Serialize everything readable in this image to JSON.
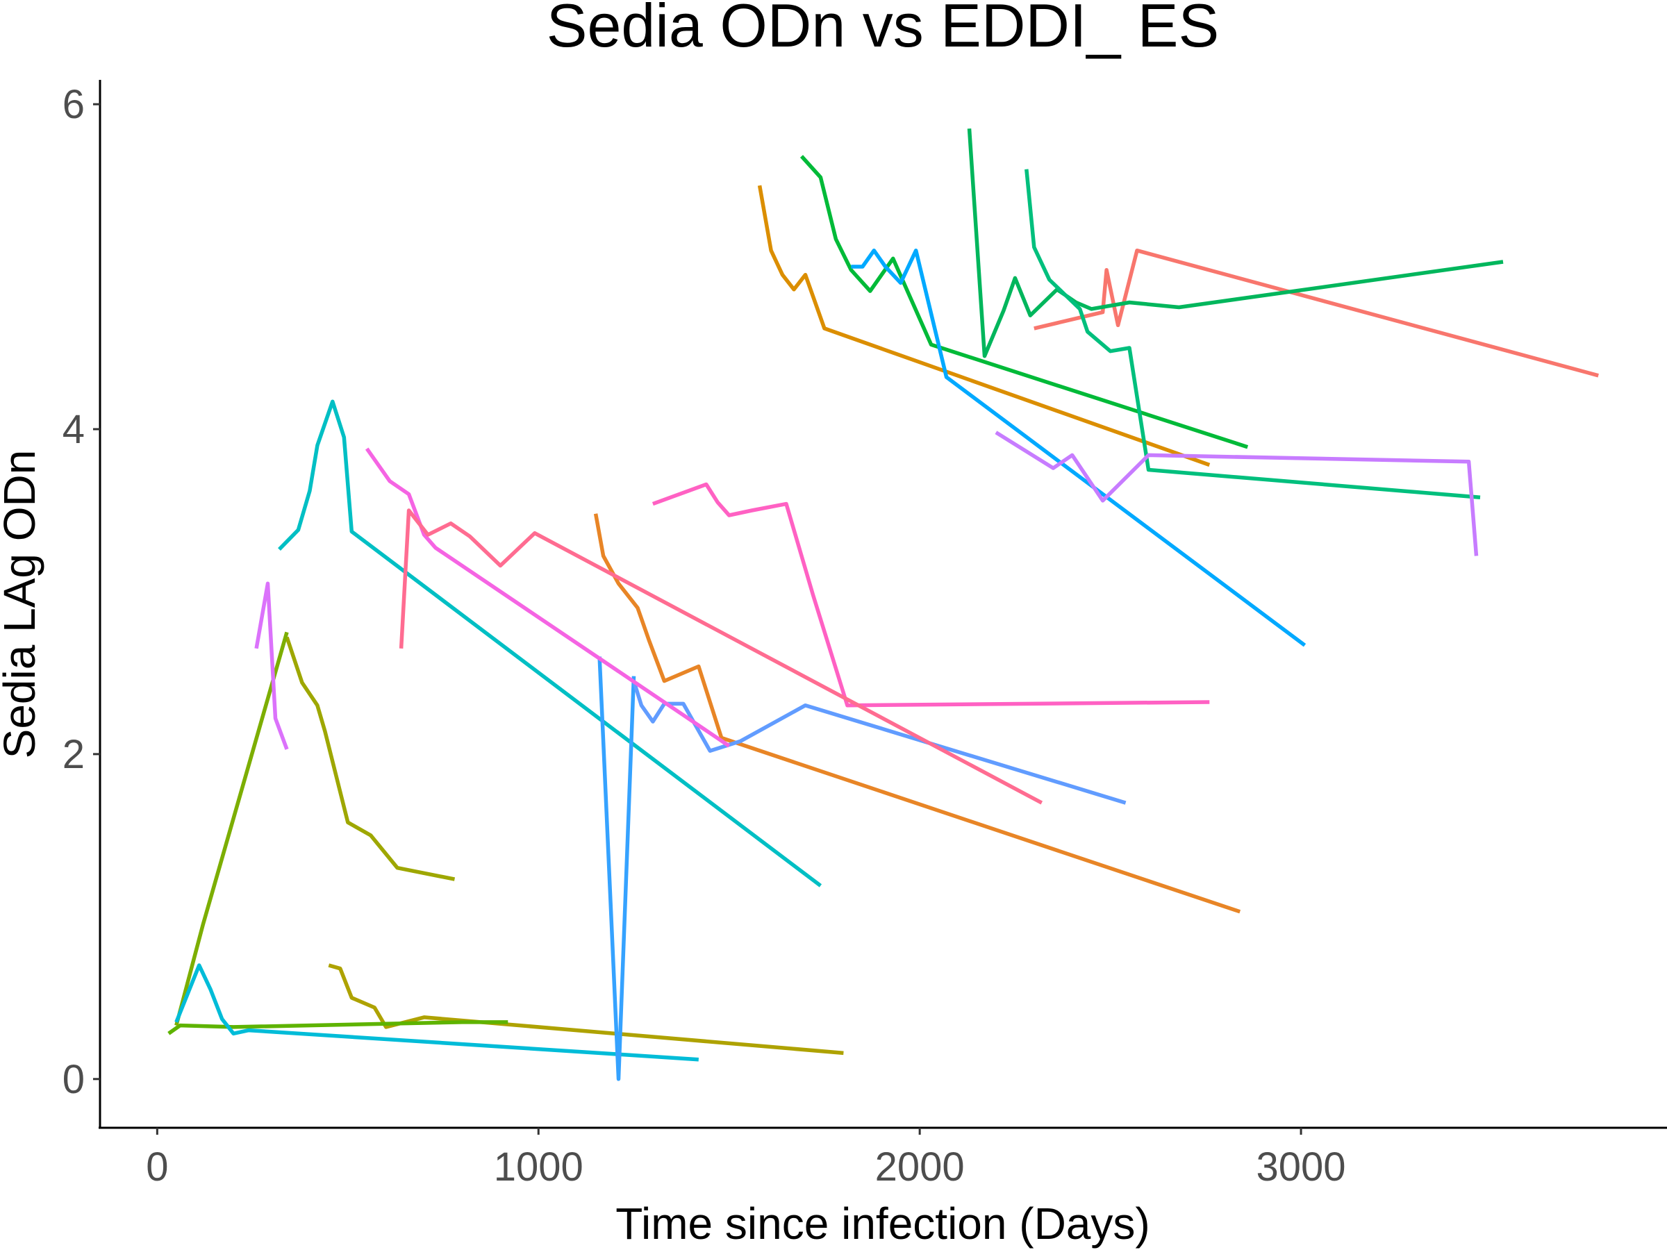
{
  "chart_data": {
    "type": "line",
    "title": "Sedia ODn vs EDDI_ ES",
    "xlabel": "Time since infection (Days)",
    "ylabel": "Sedia LAg ODn",
    "xlim": [
      -150,
      3960
    ],
    "ylim": [
      -0.3,
      6.15
    ],
    "x_ticks": [
      0,
      1000,
      2000,
      3000
    ],
    "x_tick_labels": [
      "0",
      "1000",
      "2000",
      "3000"
    ],
    "y_ticks": [
      0,
      2,
      4,
      6
    ],
    "y_tick_labels": [
      "0",
      "2",
      "4",
      "6"
    ],
    "grid": false,
    "legend": "none",
    "series": [
      {
        "color": "#F8766D",
        "points": [
          [
            2300,
            4.62
          ],
          [
            2480,
            4.72
          ],
          [
            2490,
            4.98
          ],
          [
            2520,
            4.64
          ],
          [
            2570,
            5.1
          ],
          [
            3780,
            4.33
          ]
        ]
      },
      {
        "color": "#DB8E00",
        "points": [
          [
            1580,
            5.5
          ],
          [
            1610,
            5.1
          ],
          [
            1640,
            4.95
          ],
          [
            1670,
            4.86
          ],
          [
            1700,
            4.95
          ],
          [
            1750,
            4.62
          ],
          [
            2760,
            3.78
          ]
        ]
      },
      {
        "color": "#E88526",
        "points": [
          [
            1150,
            3.48
          ],
          [
            1170,
            3.22
          ],
          [
            1210,
            3.05
          ],
          [
            1260,
            2.9
          ],
          [
            1290,
            2.7
          ],
          [
            1330,
            2.45
          ],
          [
            1420,
            2.54
          ],
          [
            1480,
            2.1
          ],
          [
            2840,
            1.03
          ]
        ]
      },
      {
        "color": "#AEA200",
        "points": [
          [
            450,
            0.7
          ],
          [
            480,
            0.68
          ],
          [
            510,
            0.5
          ],
          [
            570,
            0.44
          ],
          [
            600,
            0.32
          ],
          [
            700,
            0.38
          ],
          [
            1800,
            0.16
          ]
        ]
      },
      {
        "color": "#9EA700",
        "points": [
          [
            340,
            2.72
          ],
          [
            380,
            2.44
          ],
          [
            420,
            2.3
          ],
          [
            440,
            2.14
          ],
          [
            500,
            1.58
          ],
          [
            560,
            1.5
          ],
          [
            630,
            1.3
          ],
          [
            780,
            1.23
          ]
        ]
      },
      {
        "color": "#5EB300",
        "points": [
          [
            30,
            0.28
          ],
          [
            60,
            0.33
          ],
          [
            200,
            0.32
          ],
          [
            800,
            0.35
          ],
          [
            920,
            0.35
          ]
        ]
      },
      {
        "color": "#7CAE00",
        "points": [
          [
            50,
            0.33
          ],
          [
            120,
            0.95
          ],
          [
            340,
            2.75
          ]
        ]
      },
      {
        "color": "#00BA38",
        "points": [
          [
            1690,
            5.68
          ],
          [
            1740,
            5.55
          ],
          [
            1780,
            5.17
          ],
          [
            1820,
            4.98
          ],
          [
            1870,
            4.85
          ],
          [
            1930,
            5.05
          ],
          [
            2030,
            4.52
          ],
          [
            2860,
            3.89
          ]
        ]
      },
      {
        "color": "#00B65C",
        "points": [
          [
            2130,
            5.85
          ],
          [
            2170,
            4.45
          ],
          [
            2220,
            4.73
          ],
          [
            2250,
            4.93
          ],
          [
            2290,
            4.7
          ],
          [
            2360,
            4.86
          ],
          [
            2410,
            4.78
          ],
          [
            2450,
            4.74
          ],
          [
            2550,
            4.78
          ],
          [
            2680,
            4.75
          ],
          [
            3530,
            5.03
          ]
        ]
      },
      {
        "color": "#00BF7D",
        "points": [
          [
            2280,
            5.6
          ],
          [
            2300,
            5.12
          ],
          [
            2340,
            4.92
          ],
          [
            2380,
            4.83
          ],
          [
            2420,
            4.74
          ],
          [
            2440,
            4.6
          ],
          [
            2500,
            4.48
          ],
          [
            2550,
            4.5
          ],
          [
            2600,
            3.75
          ],
          [
            3470,
            3.58
          ]
        ]
      },
      {
        "color": "#00BFC4",
        "points": [
          [
            320,
            3.26
          ],
          [
            370,
            3.38
          ],
          [
            400,
            3.62
          ],
          [
            420,
            3.9
          ],
          [
            460,
            4.17
          ],
          [
            490,
            3.95
          ],
          [
            510,
            3.37
          ],
          [
            1740,
            1.19
          ]
        ]
      },
      {
        "color": "#00BCD8",
        "points": [
          [
            50,
            0.35
          ],
          [
            110,
            0.7
          ],
          [
            140,
            0.55
          ],
          [
            170,
            0.37
          ],
          [
            200,
            0.28
          ],
          [
            240,
            0.3
          ],
          [
            1420,
            0.12
          ]
        ]
      },
      {
        "color": "#00A9FF",
        "points": [
          [
            1820,
            5.0
          ],
          [
            1850,
            5.0
          ],
          [
            1880,
            5.1
          ],
          [
            1910,
            5.0
          ],
          [
            1950,
            4.9
          ],
          [
            1990,
            5.1
          ],
          [
            2070,
            4.32
          ],
          [
            3010,
            2.67
          ]
        ]
      },
      {
        "color": "#35A2FF",
        "points": [
          [
            1160,
            2.6
          ],
          [
            1210,
            0.0
          ],
          [
            1250,
            2.48
          ]
        ]
      },
      {
        "color": "#619CFF",
        "points": [
          [
            1250,
            2.45
          ],
          [
            1270,
            2.3
          ],
          [
            1300,
            2.2
          ],
          [
            1330,
            2.31
          ],
          [
            1380,
            2.31
          ],
          [
            1450,
            2.02
          ],
          [
            1530,
            2.08
          ],
          [
            1700,
            2.3
          ],
          [
            2540,
            1.7
          ]
        ]
      },
      {
        "color": "#C77CFF",
        "points": [
          [
            2200,
            3.98
          ],
          [
            2350,
            3.76
          ],
          [
            2400,
            3.84
          ],
          [
            2480,
            3.56
          ],
          [
            2600,
            3.84
          ],
          [
            3440,
            3.8
          ],
          [
            3460,
            3.22
          ]
        ]
      },
      {
        "color": "#DB72FB",
        "points": [
          [
            260,
            2.65
          ],
          [
            290,
            3.05
          ],
          [
            310,
            2.22
          ],
          [
            340,
            2.03
          ]
        ]
      },
      {
        "color": "#F564E3",
        "points": [
          [
            550,
            3.88
          ],
          [
            610,
            3.68
          ],
          [
            660,
            3.6
          ],
          [
            700,
            3.35
          ],
          [
            730,
            3.27
          ],
          [
            1500,
            2.05
          ]
        ]
      },
      {
        "color": "#FF61C3",
        "points": [
          [
            1300,
            3.54
          ],
          [
            1440,
            3.66
          ],
          [
            1470,
            3.55
          ],
          [
            1500,
            3.47
          ],
          [
            1560,
            3.5
          ],
          [
            1650,
            3.54
          ],
          [
            1720,
            2.98
          ],
          [
            1810,
            2.3
          ],
          [
            2760,
            2.32
          ]
        ]
      },
      {
        "color": "#FF6C91",
        "points": [
          [
            640,
            2.65
          ],
          [
            660,
            3.5
          ],
          [
            710,
            3.35
          ],
          [
            770,
            3.42
          ],
          [
            820,
            3.34
          ],
          [
            900,
            3.16
          ],
          [
            990,
            3.36
          ],
          [
            2320,
            1.7
          ]
        ]
      }
    ]
  }
}
